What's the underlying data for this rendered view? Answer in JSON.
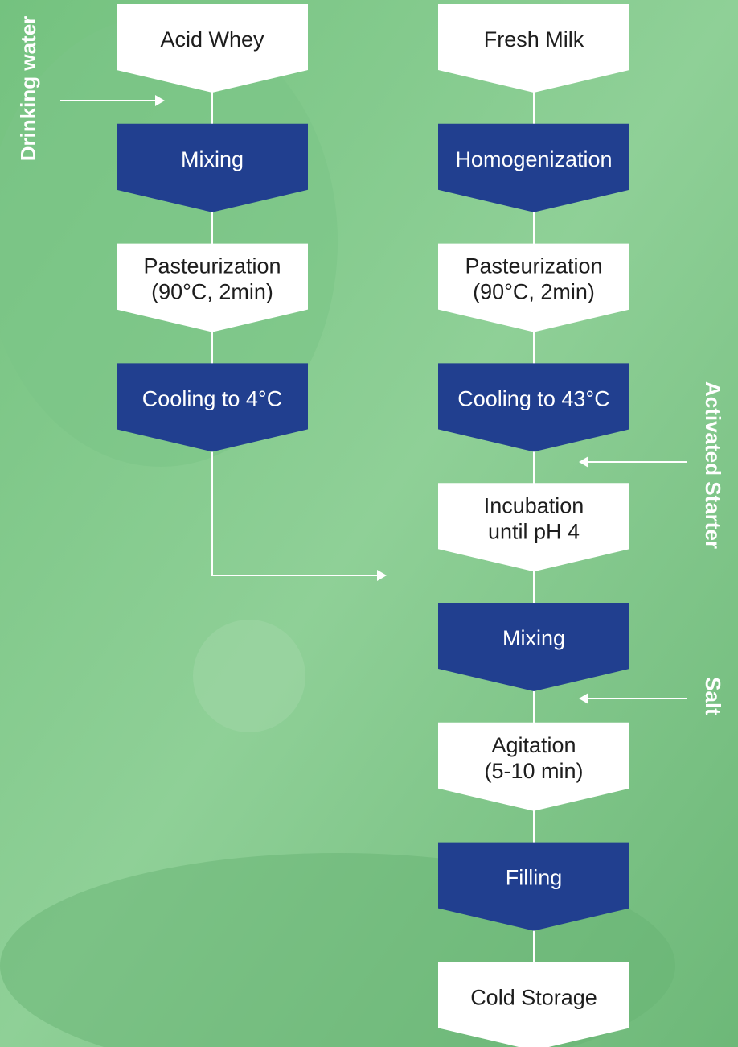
{
  "columns": [
    {
      "nodes": [
        {
          "lines": [
            "Acid Whey"
          ],
          "color": "#ffffff"
        },
        {
          "lines": [
            "Mixing"
          ],
          "color": "#213f8f"
        },
        {
          "lines": [
            "Pasteurization",
            "(90°C, 2min)"
          ],
          "color": "#ffffff"
        },
        {
          "lines": [
            "Cooling to 4°C"
          ],
          "color": "#213f8f"
        }
      ]
    },
    {
      "nodes": [
        {
          "lines": [
            "Fresh Milk"
          ],
          "color": "#ffffff"
        },
        {
          "lines": [
            "Homogenization"
          ],
          "color": "#213f8f"
        },
        {
          "lines": [
            "Pasteurization",
            "(90°C, 2min)"
          ],
          "color": "#ffffff"
        },
        {
          "lines": [
            "Cooling to 43°C"
          ],
          "color": "#213f8f"
        },
        {
          "lines": [
            "Incubation",
            "until pH 4"
          ],
          "color": "#ffffff"
        },
        {
          "lines": [
            "Mixing"
          ],
          "color": "#213f8f"
        },
        {
          "lines": [
            "Agitation",
            "(5-10 min)"
          ],
          "color": "#ffffff"
        },
        {
          "lines": [
            "Filling"
          ],
          "color": "#213f8f"
        },
        {
          "lines": [
            "Cold Storage"
          ],
          "color": "#ffffff"
        }
      ]
    }
  ],
  "inputs": [
    {
      "label": "Drinking water"
    },
    {
      "label": "Activated Starter"
    },
    {
      "label": "Salt"
    }
  ]
}
